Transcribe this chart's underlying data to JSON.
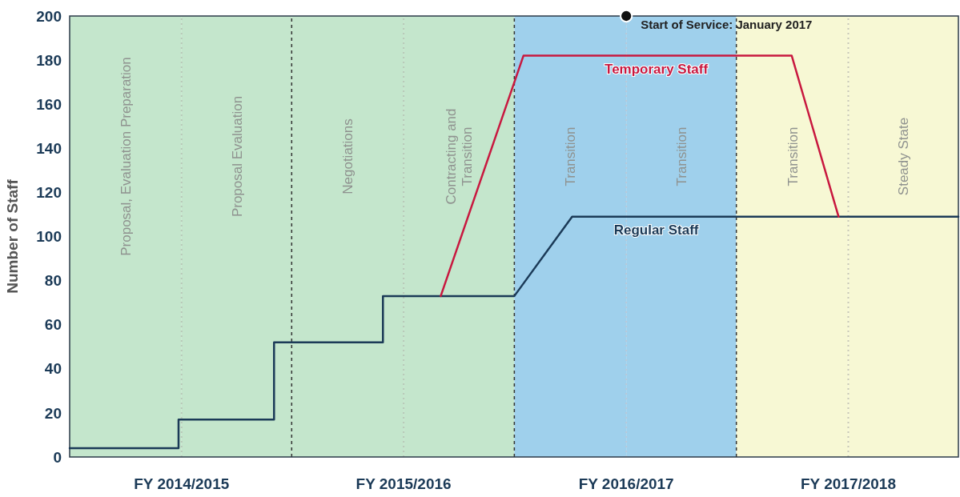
{
  "chart_data": {
    "type": "line",
    "ylabel": "Number of Staff",
    "xlim": [
      "2014-07-01",
      "2018-07-01"
    ],
    "ylim": [
      0,
      200
    ],
    "yticks": [
      0,
      20,
      40,
      60,
      80,
      100,
      120,
      140,
      160,
      180,
      200
    ],
    "xticks": [
      {
        "value": "2015-01-01",
        "label": "FY 2014/2015"
      },
      {
        "value": "2016-01-01",
        "label": "FY 2015/2016"
      },
      {
        "value": "2017-01-01",
        "label": "FY 2016/2017"
      },
      {
        "value": "2018-01-01",
        "label": "FY 2017/2018"
      }
    ],
    "grid": false,
    "marker": "none",
    "line_style": "solid",
    "series": [
      {
        "name": "Regular Staff",
        "color": "#1b3a57",
        "x": [
          "2014-07-01",
          "2014-12-27",
          "2014-12-27",
          "2015-06-02",
          "2015-06-02",
          "2015-11-28",
          "2015-11-28",
          "2016-07-01",
          "2016-10-04",
          "2018-07-01"
        ],
        "values": [
          4,
          4,
          17,
          17,
          52,
          52,
          73,
          73,
          109,
          109
        ]
      },
      {
        "name": "Temporary Staff",
        "color": "#c8183f",
        "x": [
          "2016-03-02",
          "2016-07-16",
          "2017-09-30",
          "2017-12-16"
        ],
        "values": [
          73,
          182,
          182,
          109
        ]
      },
      {
        "type": "scatter",
        "color": "#111111",
        "marker": "circle",
        "x": [
          "2017-01-01"
        ],
        "values": [
          200
        ]
      }
    ],
    "bands": [
      {
        "axis": "x",
        "from": "2014-07-01",
        "to": "2015-01-01",
        "label": "Proposal, Evaluation Preparation",
        "color": "#c4e6cc"
      },
      {
        "axis": "x",
        "from": "2015-01-01",
        "to": "2015-07-01",
        "label": "Proposal Evaluation",
        "color": "#c4e6cc"
      },
      {
        "axis": "x",
        "from": "2015-07-01",
        "to": "2016-01-01",
        "label": "Negotiations",
        "color": "#c4e6cc"
      },
      {
        "axis": "x",
        "from": "2016-01-01",
        "to": "2016-07-01",
        "label": "Contracting and Transition",
        "color": "#c4e6cc"
      },
      {
        "axis": "x",
        "from": "2016-07-01",
        "to": "2017-01-01",
        "label": "Transition",
        "color": "#9fd0ec"
      },
      {
        "axis": "x",
        "from": "2017-01-01",
        "to": "2017-07-01",
        "label": "Transition",
        "color": "#9fd0ec"
      },
      {
        "axis": "x",
        "from": "2017-07-01",
        "to": "2018-01-01",
        "label": "Transition",
        "color": "#f7f8d4"
      },
      {
        "axis": "x",
        "from": "2018-01-01",
        "to": "2018-07-01",
        "label": "Steady State",
        "color": "#f7f8d4"
      }
    ],
    "ref_lines": [
      {
        "axis": "x",
        "value": "2015-07-01",
        "color": "#333333",
        "line_style": "dashed"
      },
      {
        "axis": "x",
        "value": "2016-07-01",
        "color": "#333333",
        "line_style": "dashed"
      },
      {
        "axis": "x",
        "value": "2017-07-01",
        "color": "#333333",
        "line_style": "dashed"
      },
      {
        "axis": "x",
        "value": "2015-01-01",
        "color": "#b8c8b8",
        "line_style": "dotted"
      },
      {
        "axis": "x",
        "value": "2016-01-01",
        "color": "#b8c8b8",
        "line_style": "dotted"
      },
      {
        "axis": "x",
        "value": "2017-01-01",
        "color": "#b8c8d8",
        "line_style": "dotted"
      },
      {
        "axis": "x",
        "value": "2018-01-01",
        "color": "#c8c8b8",
        "line_style": "dotted"
      }
    ],
    "annotations": [
      {
        "text": "Start of Service: January 2017",
        "x": "2017-01-01",
        "y": 200
      }
    ]
  }
}
